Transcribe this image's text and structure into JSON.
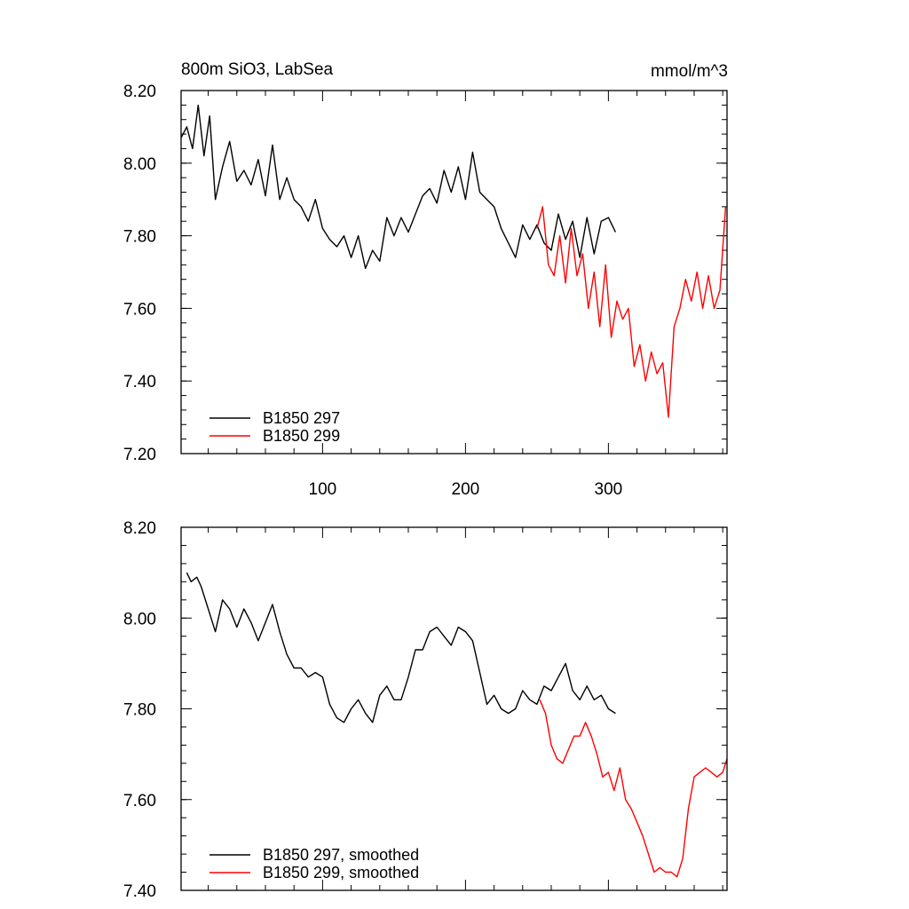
{
  "chart_data": [
    {
      "type": "line",
      "title": "800m SiO3, LabSea",
      "units": "mmol/m^3",
      "xlim": [
        1,
        383
      ],
      "ylim": [
        7.2,
        8.2
      ],
      "xticks": [
        100,
        200,
        300
      ],
      "yticks": [
        "7.20",
        "7.40",
        "7.60",
        "7.80",
        "8.00",
        "8.20"
      ],
      "legend": "bottom-left",
      "series": [
        {
          "name": "B1850 297",
          "color": "#000000",
          "x": [
            1,
            5,
            9,
            13,
            17,
            21,
            25,
            30,
            35,
            40,
            45,
            50,
            55,
            60,
            65,
            70,
            75,
            80,
            85,
            90,
            95,
            100,
            105,
            110,
            115,
            120,
            125,
            130,
            135,
            140,
            145,
            150,
            155,
            160,
            165,
            170,
            175,
            180,
            185,
            190,
            195,
            200,
            205,
            210,
            215,
            220,
            225,
            230,
            235,
            240,
            245,
            250,
            255,
            260,
            265,
            270,
            275,
            280,
            285,
            290,
            295,
            300,
            305
          ],
          "y": [
            8.07,
            8.1,
            8.04,
            8.16,
            8.02,
            8.13,
            7.9,
            7.99,
            8.06,
            7.95,
            7.98,
            7.94,
            8.01,
            7.91,
            8.05,
            7.9,
            7.96,
            7.9,
            7.88,
            7.84,
            7.9,
            7.82,
            7.79,
            7.77,
            7.8,
            7.74,
            7.8,
            7.71,
            7.76,
            7.73,
            7.85,
            7.8,
            7.85,
            7.81,
            7.86,
            7.91,
            7.93,
            7.89,
            7.98,
            7.92,
            7.99,
            7.9,
            8.03,
            7.92,
            7.9,
            7.88,
            7.82,
            7.78,
            7.74,
            7.83,
            7.79,
            7.83,
            7.78,
            7.76,
            7.86,
            7.79,
            7.84,
            7.74,
            7.85,
            7.75,
            7.84,
            7.85,
            7.81
          ]
        },
        {
          "name": "B1850 299",
          "color": "#ff0000",
          "x": [
            250,
            254,
            258,
            262,
            266,
            270,
            274,
            278,
            282,
            286,
            290,
            294,
            298,
            302,
            306,
            310,
            314,
            318,
            322,
            326,
            330,
            334,
            338,
            342,
            346,
            350,
            354,
            358,
            362,
            366,
            370,
            374,
            378,
            382
          ],
          "y": [
            7.82,
            7.88,
            7.72,
            7.69,
            7.8,
            7.67,
            7.82,
            7.69,
            7.75,
            7.6,
            7.7,
            7.55,
            7.72,
            7.52,
            7.62,
            7.57,
            7.6,
            7.44,
            7.5,
            7.4,
            7.48,
            7.42,
            7.45,
            7.3,
            7.55,
            7.6,
            7.68,
            7.62,
            7.7,
            7.6,
            7.69,
            7.6,
            7.65,
            7.88
          ]
        }
      ]
    },
    {
      "type": "line",
      "xlim": [
        1,
        383
      ],
      "ylim": [
        7.4,
        8.2
      ],
      "yticks": [
        "7.40",
        "7.60",
        "7.80",
        "8.00",
        "8.20"
      ],
      "legend": "bottom-left",
      "series": [
        {
          "name": "B1850 297, smoothed",
          "color": "#000000",
          "x": [
            5,
            8,
            12,
            15,
            20,
            25,
            30,
            35,
            40,
            45,
            50,
            55,
            60,
            65,
            70,
            75,
            80,
            85,
            90,
            95,
            100,
            105,
            110,
            115,
            120,
            125,
            130,
            135,
            140,
            145,
            150,
            155,
            160,
            165,
            170,
            175,
            180,
            185,
            190,
            195,
            200,
            205,
            210,
            215,
            220,
            225,
            230,
            235,
            240,
            245,
            250,
            255,
            260,
            265,
            270,
            275,
            280,
            285,
            290,
            295,
            300,
            305
          ],
          "y": [
            8.1,
            8.08,
            8.09,
            8.07,
            8.02,
            7.97,
            8.04,
            8.02,
            7.98,
            8.02,
            7.99,
            7.95,
            7.99,
            8.03,
            7.97,
            7.92,
            7.89,
            7.89,
            7.87,
            7.88,
            7.87,
            7.81,
            7.78,
            7.77,
            7.8,
            7.82,
            7.79,
            7.77,
            7.83,
            7.85,
            7.82,
            7.82,
            7.87,
            7.93,
            7.93,
            7.97,
            7.98,
            7.96,
            7.94,
            7.98,
            7.97,
            7.95,
            7.88,
            7.81,
            7.83,
            7.8,
            7.79,
            7.8,
            7.84,
            7.82,
            7.81,
            7.85,
            7.84,
            7.87,
            7.9,
            7.84,
            7.82,
            7.85,
            7.82,
            7.83,
            7.8,
            7.79
          ]
        },
        {
          "name": "B1850 299, smoothed",
          "color": "#ff0000",
          "x": [
            252,
            256,
            260,
            264,
            268,
            272,
            276,
            280,
            284,
            288,
            292,
            296,
            300,
            304,
            308,
            312,
            316,
            320,
            324,
            328,
            332,
            336,
            340,
            344,
            348,
            352,
            356,
            360,
            364,
            368,
            372,
            376,
            380,
            383
          ],
          "y": [
            7.82,
            7.79,
            7.72,
            7.69,
            7.68,
            7.71,
            7.74,
            7.74,
            7.77,
            7.74,
            7.7,
            7.65,
            7.66,
            7.62,
            7.67,
            7.6,
            7.58,
            7.55,
            7.52,
            7.48,
            7.44,
            7.45,
            7.44,
            7.44,
            7.43,
            7.47,
            7.58,
            7.65,
            7.66,
            7.67,
            7.66,
            7.65,
            7.66,
            7.69
          ]
        }
      ]
    }
  ]
}
